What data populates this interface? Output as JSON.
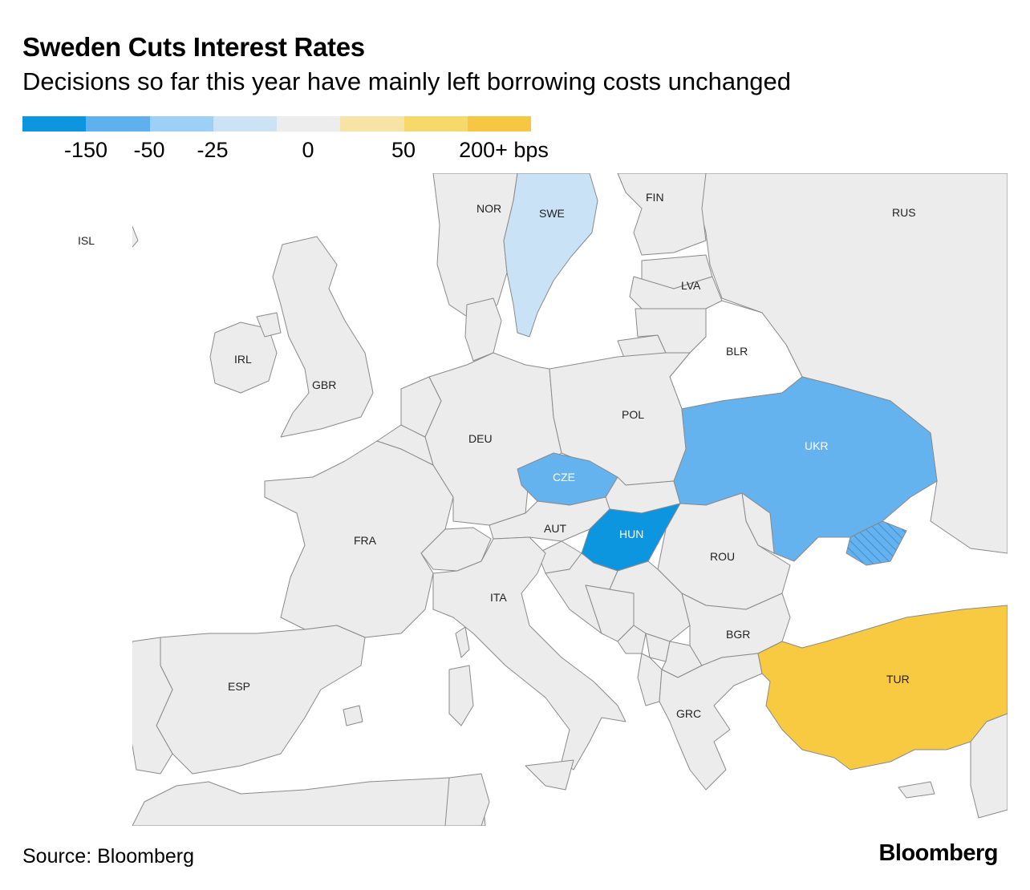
{
  "title": "Sweden Cuts Interest Rates",
  "subtitle": "Decisions so far this year have mainly left borrowing costs unchanged",
  "legend": {
    "swatches": [
      "#0d96e0",
      "#5fb0ee",
      "#9dd0f7",
      "#cce3f5",
      "#ededed",
      "#f6e3a5",
      "#f7d96b",
      "#f7c744"
    ],
    "labels": [
      "-150",
      "-50",
      "-25",
      "0",
      "50",
      "200+ bps"
    ]
  },
  "colors": {
    "neutral": "#ececec",
    "sea": "#ffffff",
    "land_outside": "#ffffff",
    "border": "#8a8a8a",
    "cut_large": "#0d96e0",
    "cut_50": "#65b3ee",
    "cut_25": "#c9e2f5",
    "hike_200": "#f8ca42"
  },
  "countries": [
    {
      "code": "ISL",
      "change_bps": 0
    },
    {
      "code": "NOR",
      "change_bps": 0
    },
    {
      "code": "SWE",
      "change_bps": -25
    },
    {
      "code": "FIN",
      "change_bps": 0
    },
    {
      "code": "RUS",
      "change_bps": 0
    },
    {
      "code": "LVA",
      "change_bps": 0
    },
    {
      "code": "BLR",
      "change_bps": null
    },
    {
      "code": "IRL",
      "change_bps": 0
    },
    {
      "code": "GBR",
      "change_bps": 0
    },
    {
      "code": "POL",
      "change_bps": 0
    },
    {
      "code": "DEU",
      "change_bps": 0
    },
    {
      "code": "UKR",
      "change_bps": -50
    },
    {
      "code": "CZE",
      "change_bps": -50
    },
    {
      "code": "AUT",
      "change_bps": 0
    },
    {
      "code": "HUN",
      "change_bps": -150
    },
    {
      "code": "FRA",
      "change_bps": 0
    },
    {
      "code": "ROU",
      "change_bps": 0
    },
    {
      "code": "ITA",
      "change_bps": 0
    },
    {
      "code": "BGR",
      "change_bps": 0
    },
    {
      "code": "TUR",
      "change_bps": 200
    },
    {
      "code": "ESP",
      "change_bps": 0
    },
    {
      "code": "GRC",
      "change_bps": 0
    }
  ],
  "source": "Source: Bloomberg",
  "brand": "Bloomberg"
}
